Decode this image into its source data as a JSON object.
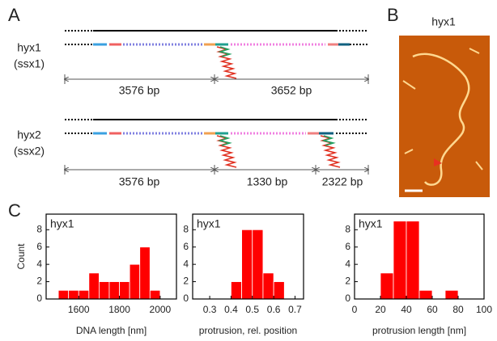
{
  "panel_a": {
    "label": "A",
    "constructs": [
      {
        "name": "hyx1",
        "alt": "(ssx1)",
        "segments": [
          "3576 bp",
          "3652 bp"
        ]
      },
      {
        "name": "hyx2",
        "alt": "(ssx2)",
        "segments": [
          "3576 bp",
          "1330 bp",
          "2322 bp"
        ]
      }
    ]
  },
  "panel_b": {
    "label": "B",
    "title": "hyx1"
  },
  "panel_c": {
    "label": "C"
  },
  "chart_data": [
    {
      "type": "histogram",
      "label": "hyx1",
      "xlabel": "DNA length [nm]",
      "ylabel": "Count",
      "color": "#ff0000",
      "bins": [
        1500,
        1550,
        1600,
        1650,
        1700,
        1750,
        1800,
        1850,
        1900,
        1950,
        2000
      ],
      "values": [
        1,
        1,
        1,
        3,
        2,
        2,
        2,
        4,
        6,
        1
      ],
      "xlim": [
        1440,
        2080
      ],
      "xticks": [
        1600,
        1800,
        2000
      ],
      "ylim": [
        0,
        9.8
      ],
      "yticks": [
        0,
        2,
        4,
        6,
        8
      ]
    },
    {
      "type": "histogram",
      "label": "hyx1",
      "xlabel": "protrusion, rel. position",
      "color": "#ff0000",
      "bins": [
        0.4,
        0.45,
        0.5,
        0.55,
        0.6,
        0.65
      ],
      "values": [
        2,
        8,
        8,
        3,
        2
      ],
      "xlim": [
        0.22,
        0.74
      ],
      "xticks": [
        0.3,
        0.4,
        0.5,
        0.6,
        0.7
      ],
      "ylim": [
        0,
        9.8
      ],
      "yticks": [
        0,
        2,
        4,
        6,
        8
      ]
    },
    {
      "type": "histogram",
      "label": "hyx1",
      "xlabel": "protrusion length [nm]",
      "color": "#ff0000",
      "bins": [
        20,
        30,
        40,
        50,
        60,
        70,
        80
      ],
      "values": [
        3,
        9,
        9,
        1,
        0,
        1
      ],
      "xlim": [
        0,
        100
      ],
      "xticks": [
        0,
        20,
        40,
        60,
        80,
        100
      ],
      "ylim": [
        0,
        9.8
      ],
      "yticks": [
        0,
        2,
        4,
        6,
        8
      ]
    }
  ]
}
